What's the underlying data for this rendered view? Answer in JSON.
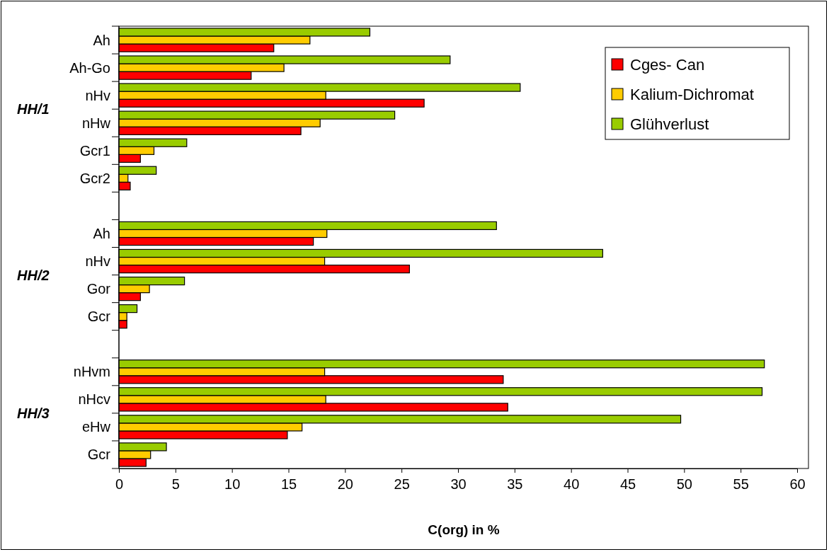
{
  "chart_data": {
    "type": "bar",
    "orientation": "horizontal",
    "xlabel": "C(org) in %",
    "categories": [
      "Ah",
      "Ah-Go",
      "nHv",
      "nHw",
      "Gcr1",
      "Gcr2",
      null,
      "Ah",
      "nHv",
      "Gor",
      "Gcr",
      null,
      "nHvm",
      "nHcv",
      "eHw",
      "Gcr"
    ],
    "series": [
      {
        "name": "Cges- Can",
        "color": "#ff0000",
        "values": [
          13.7,
          11.7,
          27.0,
          16.1,
          1.9,
          1.0,
          null,
          17.2,
          25.7,
          1.9,
          0.7,
          null,
          34.0,
          34.4,
          14.9,
          2.4
        ]
      },
      {
        "name": "Kalium-Dichromat",
        "color": "#ffcc00",
        "values": [
          16.9,
          14.6,
          18.3,
          17.8,
          3.1,
          0.8,
          null,
          18.4,
          18.2,
          2.7,
          0.7,
          null,
          18.2,
          18.3,
          16.2,
          2.8
        ]
      },
      {
        "name": "Glühverlust",
        "color": "#99cc00",
        "values": [
          22.2,
          29.3,
          35.5,
          24.4,
          6.0,
          3.3,
          null,
          33.4,
          42.8,
          5.8,
          1.6,
          null,
          57.1,
          56.9,
          49.7,
          4.2
        ]
      }
    ],
    "annotations": [
      "HH/1",
      "HH/2",
      "HH/3"
    ],
    "xlim": [
      0,
      60
    ],
    "xticks": [
      0,
      5,
      10,
      15,
      20,
      25,
      30,
      35,
      40,
      45,
      50,
      55,
      60
    ],
    "grid": false,
    "legend": "top right"
  }
}
